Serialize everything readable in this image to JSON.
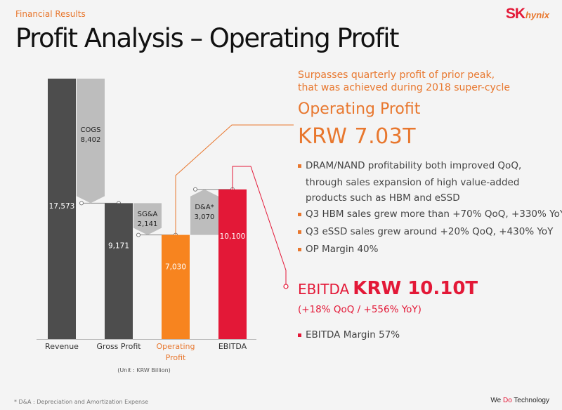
{
  "header": {
    "section_label": "Financial Results",
    "title": "Profit Analysis – Operating Profit",
    "logo_sk": "SK",
    "logo_hynix": "hynix"
  },
  "chart_data": {
    "type": "bar",
    "subtype": "waterfall",
    "categories": [
      "Revenue",
      "Gross Profit",
      "Operating Profit",
      "EBITDA"
    ],
    "category_labels": [
      [
        "Revenue"
      ],
      [
        "Gross Profit"
      ],
      [
        "Operating",
        "Profit"
      ],
      [
        "EBITDA"
      ]
    ],
    "values": [
      17573,
      9171,
      7030,
      10100
    ],
    "value_labels": [
      "17,573",
      "9,171",
      "7,030",
      "10,100"
    ],
    "colors": [
      "#4d4d4d",
      "#4d4d4d",
      "#f7841f",
      "#e31837"
    ],
    "bridges": [
      {
        "label": "COGS",
        "value": 8402,
        "value_label": "8,402",
        "from": 17573,
        "to": 9171
      },
      {
        "label": "SG&A",
        "value": 2141,
        "value_label": "2,141",
        "from": 9171,
        "to": 7030
      },
      {
        "label": "D&A*",
        "value": 3070,
        "value_label": "3,070",
        "from": 7030,
        "to": 10100
      }
    ],
    "unit_note": "(Unit : KRW Billion)",
    "ylim": [
      0,
      17573
    ]
  },
  "right_panel": {
    "peak_note_line1": "Surpasses quarterly profit of prior peak,",
    "peak_note_line2": "that was achieved during 2018 super-cycle",
    "op_label": "Operating Profit",
    "op_value": "KRW 7.03T",
    "bullets": [
      "DRAM/NAND profitability both improved QoQ,",
      "through sales expansion of high value-added",
      "products such as HBM and eSSD",
      "Q3 HBM sales grew more than +70% QoQ, +330% YoY",
      "Q3 eSSD sales grew around +20% QoQ, +430% YoY",
      "OP Margin 40%"
    ],
    "ebitda_label": "EBITDA",
    "ebitda_value": "KRW 10.10T",
    "ebitda_growth": "(+18% QoQ / +556% YoY)",
    "ebitda_margin": "EBITDA Margin 57%"
  },
  "footer": {
    "footnote": "* D&A : Depreciation and Amortization Expense",
    "slogan_we": "We ",
    "slogan_do": "Do",
    "slogan_tech": " Technology"
  },
  "colors": {
    "accent_orange": "#e8772e",
    "brand_red": "#e31837",
    "bar_gray": "#4d4d4d",
    "bridge_gray": "#bdbdbd"
  }
}
